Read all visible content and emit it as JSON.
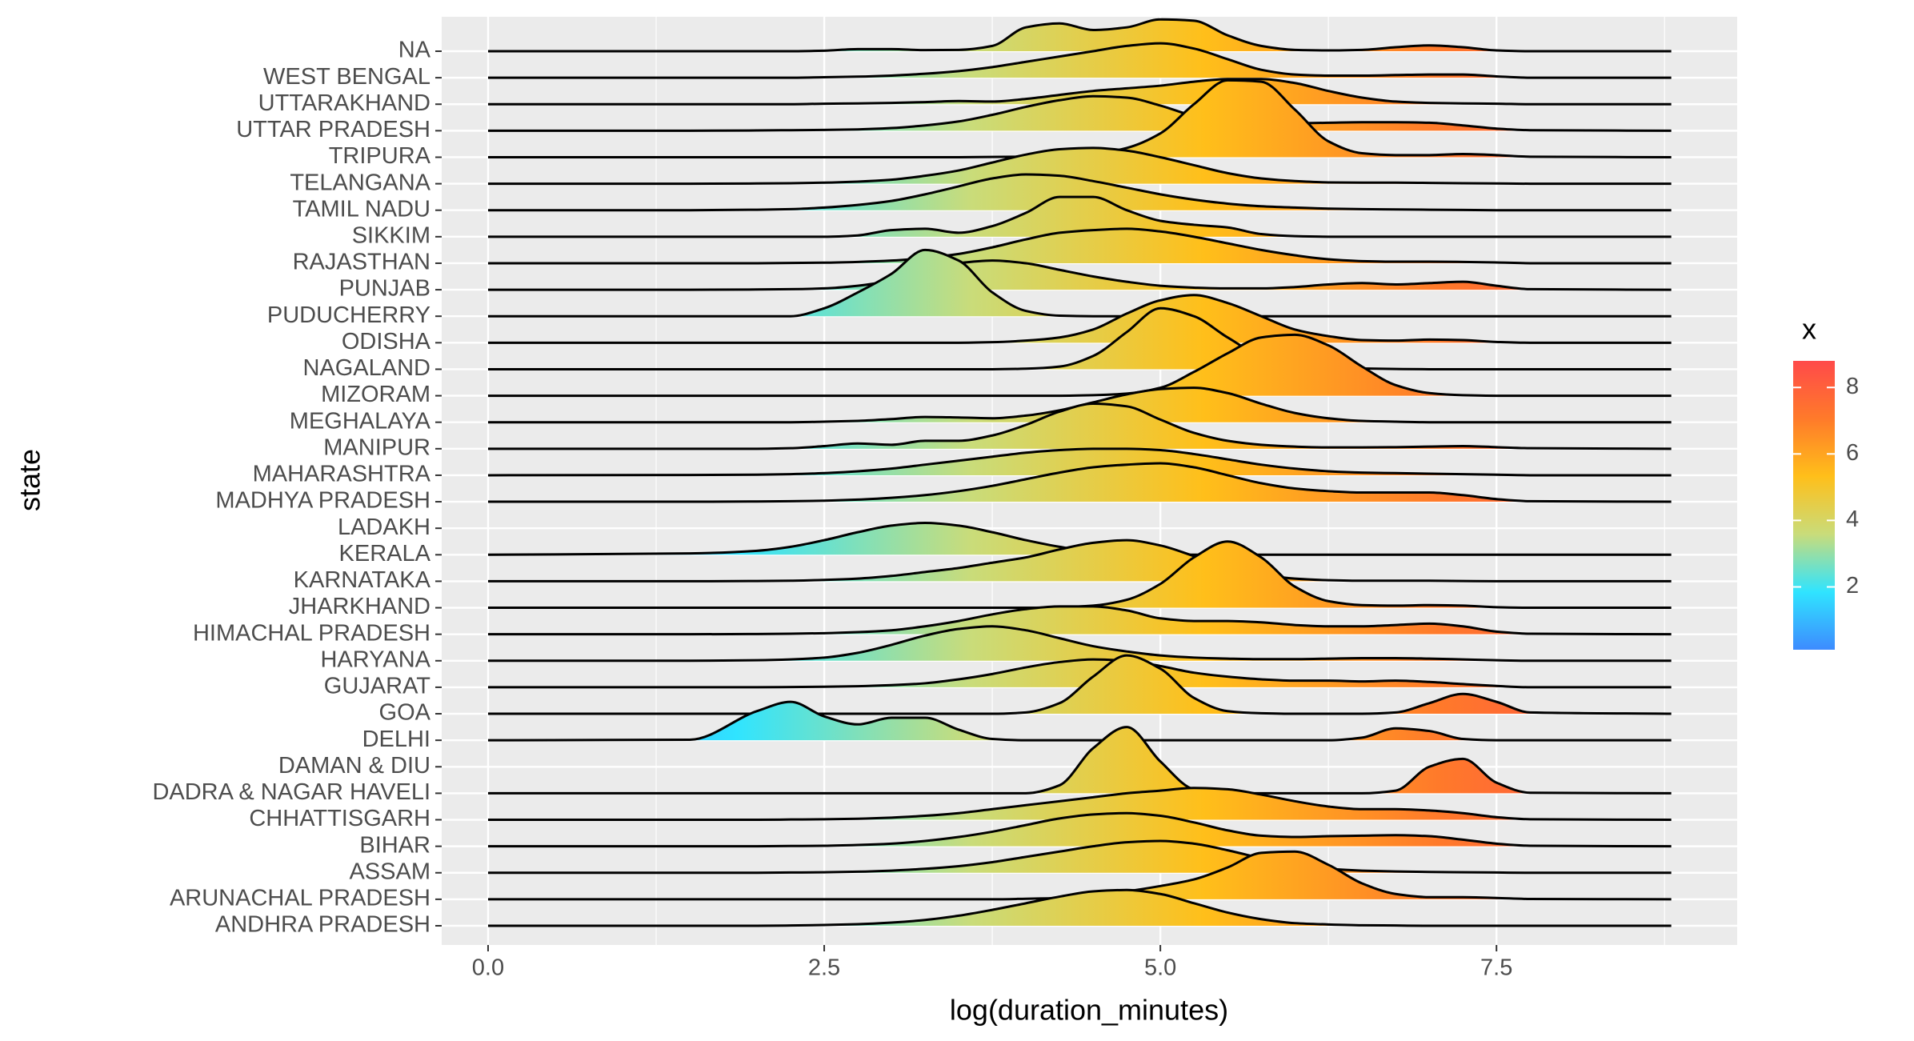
{
  "chart_data": {
    "type": "ridgeline",
    "x_label": "log(duration_minutes)",
    "y_label": "state",
    "x": [
      0,
      1.5,
      2,
      2.25,
      2.5,
      2.75,
      3,
      3.25,
      3.5,
      3.75,
      4,
      4.25,
      4.5,
      4.75,
      5,
      5.25,
      5.5,
      5.75,
      6,
      6.25,
      6.5,
      6.75,
      7,
      7.25,
      7.5,
      7.75,
      8.8
    ],
    "xlim": [
      -0.345,
      9.29
    ],
    "xticks": [
      {
        "value": 0,
        "label": "0.0"
      },
      2.5,
      {
        "value": 5,
        "label": "5.0"
      },
      7.5
    ],
    "x_minor_ticks": [
      1.25,
      3.75,
      6.25,
      8.75
    ],
    "grid": true,
    "line_color": "#000000",
    "fill_scale": {
      "title": "x",
      "lim": [
        0.11,
        8.8
      ],
      "ticks": [
        2,
        4,
        6,
        8
      ],
      "colors": [
        "#3d8bff",
        "#30e4ff",
        "#c9dc7a",
        "#ffbf1a",
        "#ff7a2a",
        "#ff4a4a"
      ]
    },
    "series": [
      {
        "name": "NA",
        "values": [
          0,
          0,
          0,
          0,
          0.02,
          0.08,
          0.08,
          0.04,
          0.05,
          0.2,
          0.9,
          1.05,
          0.8,
          0.9,
          1.2,
          1.15,
          0.6,
          0.2,
          0.05,
          0.03,
          0.05,
          0.15,
          0.22,
          0.15,
          0.03,
          0,
          0
        ]
      },
      {
        "name": "WEST BENGAL",
        "values": [
          0,
          0,
          0,
          0,
          0.02,
          0.04,
          0.08,
          0.15,
          0.25,
          0.4,
          0.6,
          0.8,
          1.0,
          1.2,
          1.3,
          1.1,
          0.7,
          0.3,
          0.12,
          0.08,
          0.08,
          0.1,
          0.12,
          0.12,
          0.05,
          0,
          0
        ]
      },
      {
        "name": "UTTARAKHAND",
        "values": [
          0,
          0,
          0,
          0,
          0.02,
          0.03,
          0.05,
          0.08,
          0.12,
          0.1,
          0.2,
          0.35,
          0.5,
          0.6,
          0.7,
          0.85,
          0.95,
          0.95,
          0.8,
          0.5,
          0.25,
          0.1,
          0.05,
          0.03,
          0.02,
          0,
          0
        ]
      },
      {
        "name": "UTTAR PRADESH",
        "values": [
          0,
          0,
          0.01,
          0.02,
          0.03,
          0.05,
          0.1,
          0.2,
          0.35,
          0.6,
          0.9,
          1.15,
          1.3,
          1.25,
          0.95,
          0.55,
          0.3,
          0.25,
          0.28,
          0.3,
          0.32,
          0.32,
          0.3,
          0.2,
          0.08,
          0.02,
          0
        ]
      },
      {
        "name": "TRIPURA",
        "values": [
          0,
          0,
          0,
          0,
          0,
          0,
          0,
          0,
          0,
          0.01,
          0.02,
          0.05,
          0.12,
          0.35,
          0.9,
          2.0,
          2.9,
          2.85,
          1.8,
          0.6,
          0.15,
          0.08,
          0.08,
          0.12,
          0.08,
          0.02,
          0
        ]
      },
      {
        "name": "TELANGANA",
        "values": [
          0,
          0,
          0.01,
          0.02,
          0.04,
          0.08,
          0.15,
          0.3,
          0.5,
          0.8,
          1.1,
          1.3,
          1.35,
          1.25,
          1.0,
          0.7,
          0.4,
          0.2,
          0.1,
          0.05,
          0.04,
          0.04,
          0.03,
          0.02,
          0.01,
          0,
          0
        ]
      },
      {
        "name": "TAMIL NADU",
        "values": [
          0,
          0,
          0.02,
          0.04,
          0.1,
          0.2,
          0.35,
          0.6,
          0.9,
          1.2,
          1.35,
          1.3,
          1.1,
          0.85,
          0.6,
          0.4,
          0.25,
          0.15,
          0.1,
          0.06,
          0.04,
          0.03,
          0.02,
          0.01,
          0,
          0,
          0
        ]
      },
      {
        "name": "SIKKIM",
        "values": [
          0,
          0,
          0,
          0,
          0,
          0.05,
          0.25,
          0.3,
          0.15,
          0.4,
          0.9,
          1.5,
          1.5,
          1.0,
          0.6,
          0.45,
          0.35,
          0.1,
          0.02,
          0,
          0,
          0,
          0,
          0,
          0,
          0,
          0
        ]
      },
      {
        "name": "RAJASTHAN",
        "values": [
          0,
          0,
          0,
          0.01,
          0.02,
          0.05,
          0.1,
          0.2,
          0.35,
          0.6,
          0.9,
          1.15,
          1.25,
          1.3,
          1.2,
          1.0,
          0.75,
          0.5,
          0.3,
          0.15,
          0.08,
          0.06,
          0.06,
          0.05,
          0.03,
          0,
          0
        ]
      },
      {
        "name": "PUNJAB",
        "values": [
          0,
          0,
          0.01,
          0.02,
          0.05,
          0.15,
          0.35,
          0.7,
          1.0,
          1.1,
          1.0,
          0.75,
          0.5,
          0.3,
          0.15,
          0.08,
          0.05,
          0.05,
          0.1,
          0.2,
          0.25,
          0.2,
          0.25,
          0.3,
          0.15,
          0.02,
          0
        ]
      },
      {
        "name": "PUDUCHERRY",
        "values": [
          0,
          0,
          0,
          0,
          0.3,
          0.9,
          1.6,
          2.5,
          2.1,
          0.9,
          0.2,
          0.02,
          0,
          0,
          0,
          0,
          0,
          0,
          0,
          0,
          0,
          0,
          0,
          0,
          0,
          0,
          0
        ]
      },
      {
        "name": "ODISHA",
        "values": [
          0,
          0,
          0,
          0,
          0,
          0,
          0,
          0,
          0,
          0.02,
          0.08,
          0.2,
          0.5,
          1.1,
          1.6,
          1.8,
          1.5,
          1.0,
          0.5,
          0.25,
          0.1,
          0.08,
          0.12,
          0.1,
          0.03,
          0,
          0
        ]
      },
      {
        "name": "NAGALAND",
        "values": [
          0,
          0,
          0,
          0,
          0,
          0,
          0,
          0,
          0,
          0,
          0.02,
          0.1,
          0.5,
          1.4,
          2.3,
          2.0,
          1.2,
          0.5,
          0.2,
          0.08,
          0.03,
          0.01,
          0,
          0,
          0,
          0,
          0
        ]
      },
      {
        "name": "MIZORAM",
        "values": [
          0,
          0,
          0,
          0,
          0,
          0,
          0,
          0,
          0,
          0,
          0,
          0,
          0.02,
          0.08,
          0.3,
          0.9,
          1.6,
          2.2,
          2.3,
          1.9,
          1.1,
          0.4,
          0.1,
          0.02,
          0,
          0,
          0
        ]
      },
      {
        "name": "MEGHALAYA",
        "values": [
          0,
          0,
          0,
          0,
          0.02,
          0.05,
          0.12,
          0.2,
          0.18,
          0.15,
          0.25,
          0.45,
          0.75,
          1.05,
          1.25,
          1.3,
          1.1,
          0.7,
          0.35,
          0.15,
          0.05,
          0.02,
          0,
          0,
          0,
          0,
          0
        ]
      },
      {
        "name": "MANIPUR",
        "values": [
          0,
          0,
          0,
          0.02,
          0.1,
          0.2,
          0.15,
          0.3,
          0.3,
          0.5,
          0.9,
          1.4,
          1.7,
          1.6,
          1.1,
          0.6,
          0.3,
          0.15,
          0.08,
          0.05,
          0.05,
          0.06,
          0.08,
          0.1,
          0.06,
          0.02,
          0
        ]
      },
      {
        "name": "MAHARASHTRA",
        "values": [
          0,
          0.01,
          0.02,
          0.04,
          0.08,
          0.15,
          0.25,
          0.4,
          0.55,
          0.7,
          0.85,
          0.95,
          1.0,
          1.0,
          0.95,
          0.8,
          0.6,
          0.4,
          0.25,
          0.15,
          0.1,
          0.08,
          0.06,
          0.04,
          0.02,
          0,
          0
        ]
      },
      {
        "name": "MADHYA PRADESH",
        "values": [
          0,
          0,
          0.01,
          0.02,
          0.04,
          0.08,
          0.15,
          0.25,
          0.4,
          0.6,
          0.85,
          1.1,
          1.3,
          1.4,
          1.45,
          1.3,
          1.0,
          0.7,
          0.5,
          0.4,
          0.35,
          0.35,
          0.35,
          0.25,
          0.1,
          0.02,
          0
        ]
      },
      {
        "name": "LADAKH",
        "values": [
          null,
          null,
          null,
          null,
          null,
          null,
          null,
          null,
          null,
          null,
          null,
          null,
          null,
          null,
          null,
          null,
          null,
          null,
          null,
          null,
          null,
          null,
          null,
          null,
          null,
          null,
          null
        ]
      },
      {
        "name": "KERALA",
        "values": [
          0,
          0.05,
          0.15,
          0.3,
          0.55,
          0.85,
          1.1,
          1.2,
          1.1,
          0.85,
          0.55,
          0.3,
          0.12,
          0.05,
          0.02,
          0,
          0,
          0,
          0,
          0,
          0,
          0,
          0,
          0,
          0,
          0,
          0
        ]
      },
      {
        "name": "KARNATAKA",
        "values": [
          0,
          0,
          0.01,
          0.02,
          0.05,
          0.1,
          0.2,
          0.35,
          0.5,
          0.7,
          0.9,
          1.2,
          1.45,
          1.55,
          1.35,
          0.95,
          0.55,
          0.25,
          0.1,
          0.04,
          0.02,
          0.02,
          0.02,
          0.01,
          0,
          0,
          0
        ]
      },
      {
        "name": "JHARKHAND",
        "values": [
          0,
          0,
          0,
          0,
          0,
          0,
          0,
          0,
          0,
          0,
          0,
          0.02,
          0.08,
          0.3,
          0.9,
          1.9,
          2.5,
          1.9,
          0.8,
          0.25,
          0.1,
          0.08,
          0.1,
          0.08,
          0.02,
          0,
          0
        ]
      },
      {
        "name": "HIMACHAL PRADESH",
        "values": [
          0,
          0,
          0.01,
          0.02,
          0.04,
          0.08,
          0.15,
          0.3,
          0.5,
          0.75,
          0.95,
          1.05,
          1.05,
          0.9,
          0.6,
          0.5,
          0.5,
          0.45,
          0.35,
          0.3,
          0.3,
          0.35,
          0.4,
          0.3,
          0.1,
          0.02,
          0
        ]
      },
      {
        "name": "HARYANA",
        "values": [
          0,
          0,
          0.02,
          0.05,
          0.12,
          0.3,
          0.6,
          0.95,
          1.2,
          1.3,
          1.15,
          0.85,
          0.55,
          0.35,
          0.2,
          0.12,
          0.08,
          0.06,
          0.06,
          0.08,
          0.1,
          0.1,
          0.08,
          0.05,
          0.02,
          0,
          0
        ]
      },
      {
        "name": "GUJARAT",
        "values": [
          0,
          0,
          0,
          0.01,
          0.02,
          0.04,
          0.08,
          0.15,
          0.3,
          0.5,
          0.75,
          0.95,
          1.05,
          1.0,
          0.8,
          0.55,
          0.4,
          0.3,
          0.25,
          0.25,
          0.22,
          0.25,
          0.2,
          0.12,
          0.05,
          0,
          0
        ]
      },
      {
        "name": "GOA",
        "values": [
          0,
          0,
          0,
          0,
          0,
          0,
          0,
          0,
          0,
          0,
          0.05,
          0.4,
          1.4,
          2.2,
          1.7,
          0.6,
          0.1,
          0.02,
          0,
          0,
          0,
          0.05,
          0.4,
          0.75,
          0.45,
          0.05,
          0
        ]
      },
      {
        "name": "DELHI",
        "values": [
          0,
          0.02,
          1.1,
          1.45,
          0.9,
          0.6,
          0.85,
          0.85,
          0.4,
          0.05,
          0,
          0,
          0,
          0,
          0,
          0,
          0,
          0,
          0,
          0,
          0.1,
          0.45,
          0.35,
          0.05,
          0,
          0,
          0
        ]
      },
      {
        "name": "DAMAN & DIU",
        "values": [
          null,
          null,
          null,
          null,
          null,
          null,
          null,
          null,
          null,
          null,
          null,
          null,
          null,
          null,
          null,
          null,
          null,
          null,
          null,
          null,
          null,
          null,
          null,
          null,
          null,
          null,
          null
        ]
      },
      {
        "name": "DADRA & NAGAR HAVELI",
        "values": [
          0,
          0,
          0,
          0,
          0,
          0,
          0,
          0,
          0,
          0,
          0,
          0.3,
          1.7,
          2.5,
          1.2,
          0.15,
          0,
          0,
          0,
          0,
          0,
          0.1,
          1.0,
          1.3,
          0.4,
          0.02,
          0
        ]
      },
      {
        "name": "CHHATTISGARH",
        "values": [
          0,
          0,
          0,
          0.01,
          0.02,
          0.04,
          0.08,
          0.15,
          0.25,
          0.4,
          0.55,
          0.7,
          0.85,
          1.0,
          1.1,
          1.2,
          1.15,
          0.95,
          0.7,
          0.5,
          0.4,
          0.4,
          0.35,
          0.25,
          0.1,
          0.02,
          0
        ]
      },
      {
        "name": "BIHAR",
        "values": [
          0,
          0,
          0,
          0.01,
          0.02,
          0.05,
          0.1,
          0.2,
          0.35,
          0.55,
          0.8,
          1.05,
          1.2,
          1.25,
          1.15,
          0.9,
          0.6,
          0.4,
          0.35,
          0.38,
          0.4,
          0.42,
          0.38,
          0.25,
          0.1,
          0.02,
          0
        ]
      },
      {
        "name": "ASSAM",
        "values": [
          0,
          0,
          0,
          0.01,
          0.02,
          0.04,
          0.08,
          0.15,
          0.25,
          0.4,
          0.6,
          0.8,
          1.0,
          1.15,
          1.2,
          1.1,
          0.85,
          0.55,
          0.3,
          0.15,
          0.08,
          0.05,
          0.03,
          0.02,
          0.01,
          0,
          0
        ]
      },
      {
        "name": "ARUNACHAL PRADESH",
        "values": [
          0,
          0,
          0,
          0,
          0,
          0,
          0,
          0,
          0,
          0,
          0.02,
          0.05,
          0.15,
          0.3,
          0.5,
          0.75,
          1.2,
          1.75,
          1.8,
          1.3,
          0.6,
          0.2,
          0.08,
          0.08,
          0.05,
          0.01,
          0
        ]
      },
      {
        "name": "ANDHRA PRADESH",
        "values": [
          0,
          0,
          0,
          0.01,
          0.03,
          0.06,
          0.12,
          0.22,
          0.38,
          0.6,
          0.85,
          1.1,
          1.3,
          1.35,
          1.2,
          0.85,
          0.5,
          0.25,
          0.1,
          0.05,
          0.02,
          0.01,
          0,
          0,
          0,
          0,
          0
        ]
      }
    ]
  }
}
